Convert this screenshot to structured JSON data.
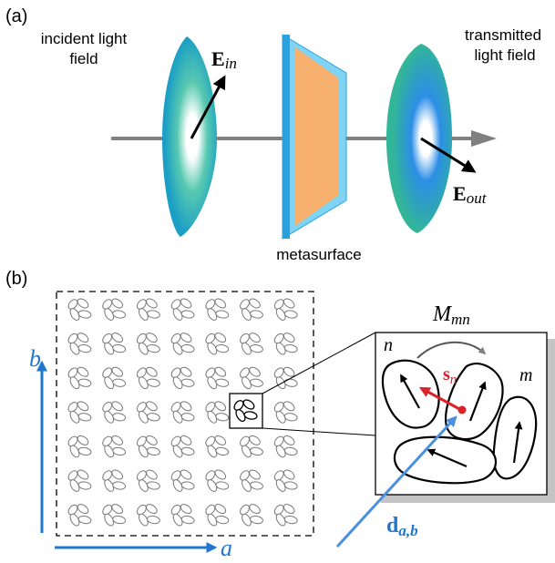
{
  "panel_a": {
    "label": "(a)",
    "incident_line1": "incident light",
    "incident_line2": "field",
    "transmitted_line1": "transmitted",
    "transmitted_line2": "light field",
    "e_in_main": "E",
    "e_in_sub": "in",
    "e_out_main": "E",
    "e_out_sub": "out",
    "metasurface": "metasurface"
  },
  "panel_b": {
    "label": "(b)",
    "axis_b": "b",
    "axis_a": "a",
    "m_main": "M",
    "m_sub": "mn",
    "n": "n",
    "m": "m",
    "s_main": "s",
    "s_sub": "n",
    "d_main": "d",
    "d_sub": "a,b",
    "grid_rows": 7,
    "grid_cols": 7
  },
  "colors": {
    "axis_blue": "#1f77d0",
    "red": "#d9222a",
    "orange": "#f8b06e",
    "light_blue": "#7fd4f5",
    "gray": "#808080"
  }
}
